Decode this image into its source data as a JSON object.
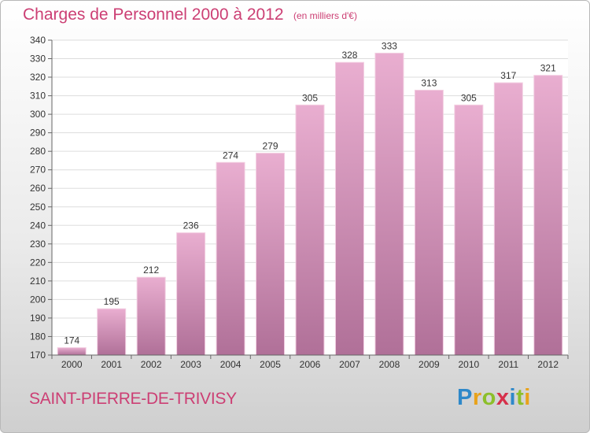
{
  "header": {
    "title": "Charges de Personnel 2000 à 2012",
    "subtitle": "(en milliers d'€)"
  },
  "footer": {
    "town": "SAINT-PIERRE-DE-TRIVISY",
    "logo_letters": [
      {
        "char": "P",
        "color": "#2e88c9"
      },
      {
        "char": "r",
        "color": "#e8a21a"
      },
      {
        "char": "o",
        "color": "#8cbf2a"
      },
      {
        "char": "x",
        "color": "#d6304a"
      },
      {
        "char": "i",
        "color": "#2e88c9"
      },
      {
        "char": "t",
        "color": "#8cbf2a"
      },
      {
        "char": "i",
        "color": "#e8a21a"
      }
    ]
  },
  "colors": {
    "bar_top": "#e9aed0",
    "bar_bottom": "#b07098",
    "grid": "#dddddd"
  },
  "chart_data": {
    "type": "bar",
    "categories": [
      "2000",
      "2001",
      "2002",
      "2003",
      "2004",
      "2005",
      "2006",
      "2007",
      "2008",
      "2009",
      "2010",
      "2011",
      "2012"
    ],
    "values": [
      174,
      195,
      212,
      236,
      274,
      279,
      305,
      328,
      333,
      313,
      305,
      317,
      321
    ],
    "title": "Charges de Personnel 2000 à 2012",
    "ylim": [
      170,
      340
    ],
    "yticks": [
      170,
      180,
      190,
      200,
      210,
      220,
      230,
      240,
      250,
      260,
      270,
      280,
      290,
      300,
      310,
      320,
      330,
      340
    ],
    "grid": true
  }
}
